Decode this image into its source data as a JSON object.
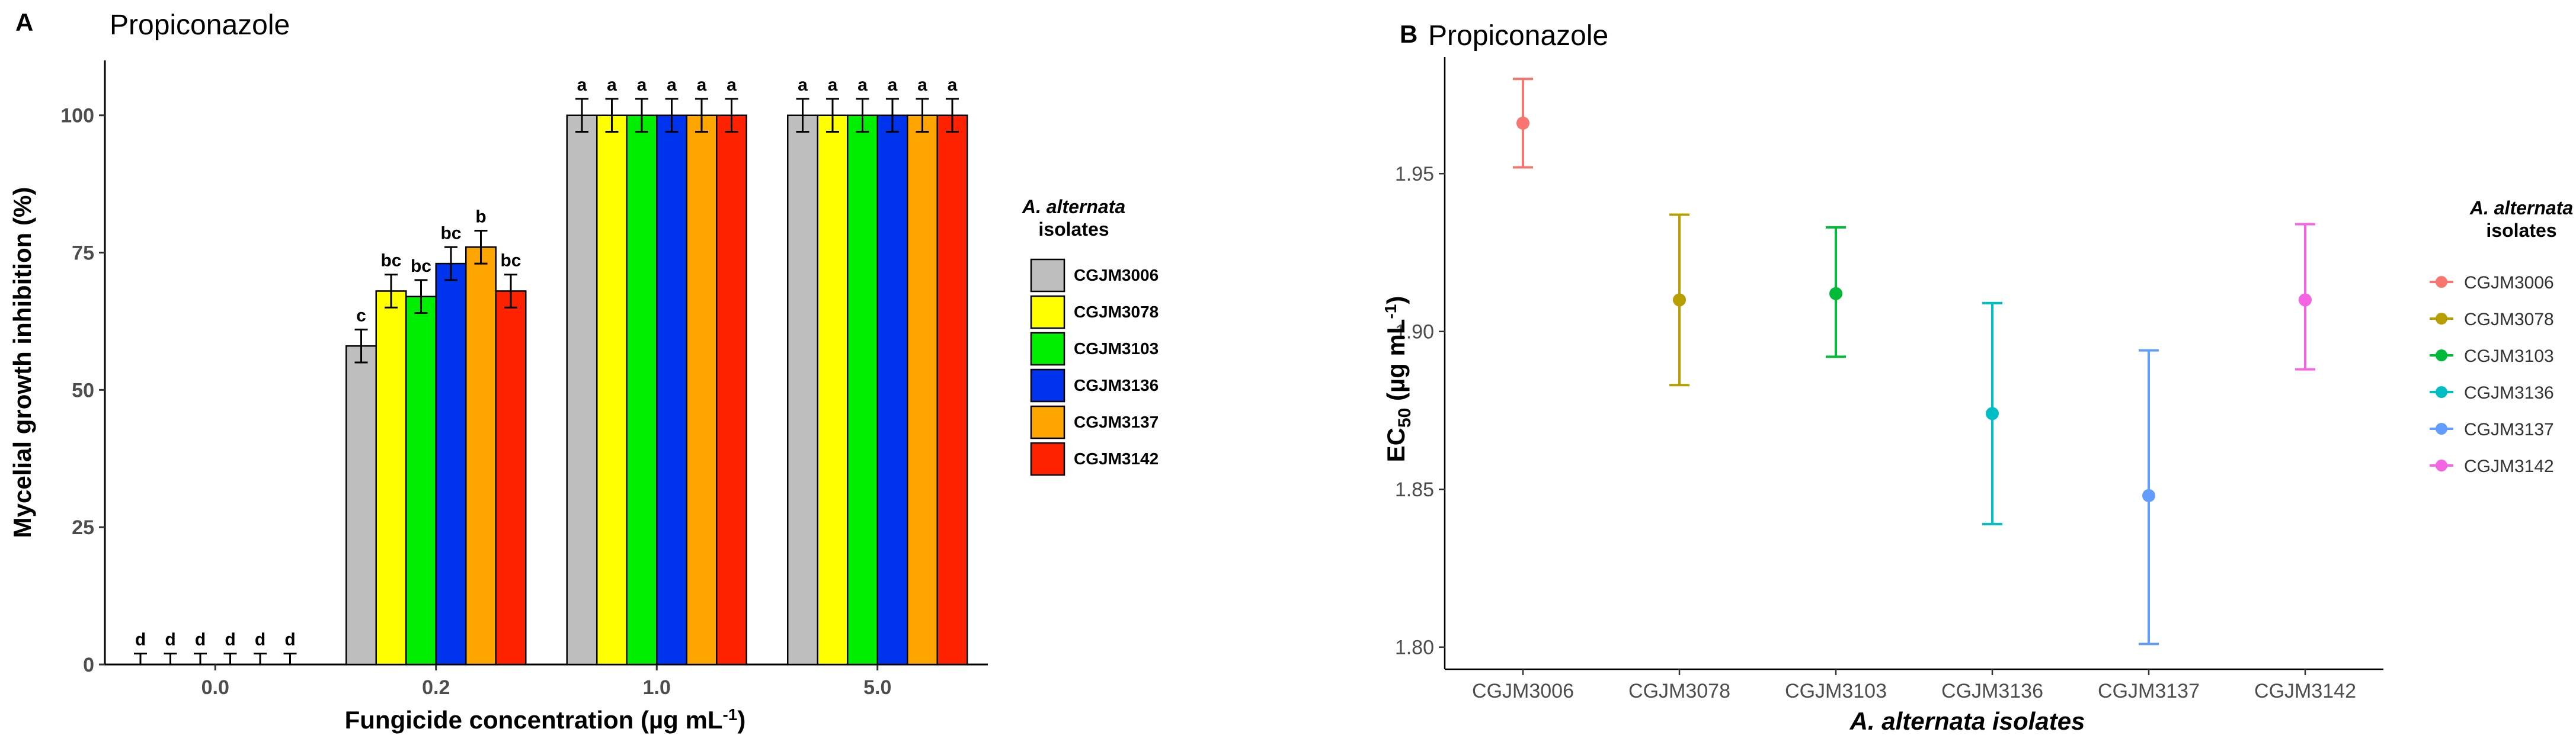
{
  "chart_data": [
    {
      "panel": "A",
      "type": "bar",
      "title": "Propiconazole",
      "xlabel": "Fungicide concentration (µg mL",
      "xlabel_sup": "-1",
      "xlabel_end": ")",
      "ylabel": "Mycelial growth inhibition (%)",
      "ylim": [
        0,
        110
      ],
      "yticks": [
        "0",
        "25",
        "50",
        "75",
        "100"
      ],
      "categories": [
        "0.0",
        "0.2",
        "1.0",
        "5.0"
      ],
      "legend_title_1": "A. alternata",
      "legend_title_2": "isolates",
      "series": [
        {
          "name": "CGJM3006",
          "color": "#bebebe",
          "values": [
            0,
            58,
            100,
            100
          ],
          "errors": [
            2,
            3,
            3,
            3
          ],
          "letters": [
            "d",
            "c",
            "a",
            "a"
          ]
        },
        {
          "name": "CGJM3078",
          "color": "#ffff00",
          "values": [
            0,
            68,
            100,
            100
          ],
          "errors": [
            2,
            3,
            3,
            3
          ],
          "letters": [
            "d",
            "bc",
            "a",
            "a"
          ]
        },
        {
          "name": "CGJM3103",
          "color": "#00ee00",
          "values": [
            0,
            67,
            100,
            100
          ],
          "errors": [
            2,
            3,
            3,
            3
          ],
          "letters": [
            "d",
            "bc",
            "a",
            "a"
          ]
        },
        {
          "name": "CGJM3136",
          "color": "#0033ee",
          "values": [
            0,
            73,
            100,
            100
          ],
          "errors": [
            2,
            3,
            3,
            3
          ],
          "letters": [
            "d",
            "bc",
            "a",
            "a"
          ]
        },
        {
          "name": "CGJM3137",
          "color": "#ffa500",
          "values": [
            0,
            76,
            100,
            100
          ],
          "errors": [
            2,
            3,
            3,
            3
          ],
          "letters": [
            "d",
            "b",
            "a",
            "a"
          ]
        },
        {
          "name": "CGJM3142",
          "color": "#ff2200",
          "values": [
            0,
            68,
            100,
            100
          ],
          "errors": [
            2,
            3,
            3,
            3
          ],
          "letters": [
            "d",
            "bc",
            "a",
            "a"
          ]
        }
      ]
    },
    {
      "panel": "B",
      "type": "scatter",
      "title": "Propiconazole",
      "xlabel": "A. alternata isolates",
      "ylabel": "EC",
      "ylabel_sub": "50",
      "ylabel_unit": " (µg mL",
      "ylabel_sup": "-1",
      "ylabel_end": ")",
      "ylim": [
        1.793,
        1.987
      ],
      "yticks": [
        1.8,
        1.85,
        1.9,
        1.95
      ],
      "ytick_labels": [
        "1.80",
        "1.85",
        "1.90",
        "1.95"
      ],
      "categories": [
        "CGJM3006",
        "CGJM3078",
        "CGJM3103",
        "CGJM3136",
        "CGJM3137",
        "CGJM3142"
      ],
      "legend_title_1": "A. alternata",
      "legend_title_2": "isolates",
      "points": [
        {
          "name": "CGJM3006",
          "color": "#f8766d",
          "y": 1.966,
          "ymin": 1.952,
          "ymax": 1.98
        },
        {
          "name": "CGJM3078",
          "color": "#b79f00",
          "y": 1.91,
          "ymin": 1.883,
          "ymax": 1.937
        },
        {
          "name": "CGJM3103",
          "color": "#00ba38",
          "y": 1.912,
          "ymin": 1.892,
          "ymax": 1.933
        },
        {
          "name": "CGJM3136",
          "color": "#00bfc4",
          "y": 1.874,
          "ymin": 1.839,
          "ymax": 1.909
        },
        {
          "name": "CGJM3137",
          "color": "#619cff",
          "y": 1.848,
          "ymin": 1.801,
          "ymax": 1.894
        },
        {
          "name": "CGJM3142",
          "color": "#f564e3",
          "y": 1.91,
          "ymin": 1.888,
          "ymax": 1.934
        }
      ]
    }
  ]
}
